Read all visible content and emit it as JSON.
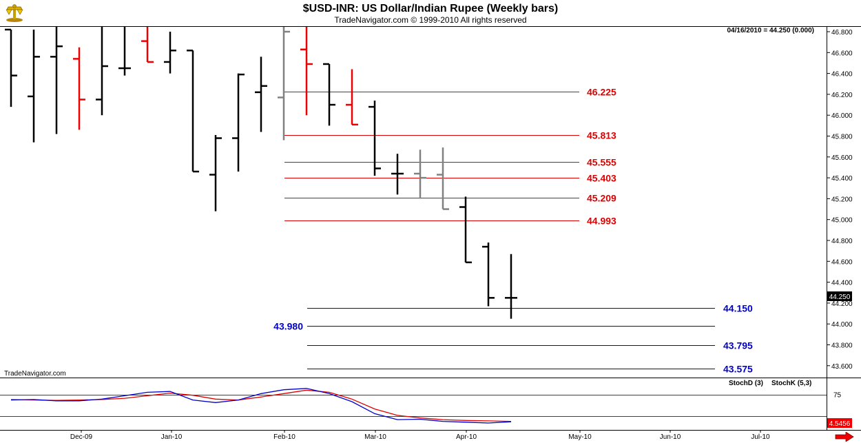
{
  "title": "$USD-INR:  US Dollar/Indian Rupee  (Weekly bars)",
  "subtitle": "TradeNavigator.com © 1999-2010 All rights reserved",
  "watermark": "TradeNavigator.com",
  "last_quote": "04/16/2010 = 44.250 (0.000)",
  "price_marker": "44.250",
  "indicator_marker": "4.5456",
  "indicator_legend": [
    {
      "label": "StochD (3)",
      "color": "#dd0000"
    },
    {
      "label": "StochK (5,3)",
      "color": "#0000cc"
    }
  ],
  "colors": {
    "up_bar": "#000000",
    "down_bar": "#ee0000",
    "neutral_bar": "#808080",
    "resistance": "#dd0000",
    "support": "#0000cc"
  },
  "chart_data": {
    "type": "ohlc",
    "y_range": [
      43.5,
      46.85
    ],
    "y_ticks": [
      "46.800",
      "46.600",
      "46.400",
      "46.200",
      "46.000",
      "45.800",
      "45.600",
      "45.400",
      "45.200",
      "45.000",
      "44.800",
      "44.600",
      "44.400",
      "44.200",
      "44.000",
      "43.800",
      "43.600"
    ],
    "x_labels": [
      "Dec-09",
      "Jan-10",
      "Feb-10",
      "Mar-10",
      "Apr-10",
      "May-10",
      "Jun-10",
      "Jul-10"
    ],
    "bars": [
      {
        "week": 0,
        "open": 46.82,
        "high": 46.82,
        "low": 46.08,
        "close": 46.38,
        "color": "black"
      },
      {
        "week": 1,
        "open": 46.18,
        "high": 46.82,
        "low": 45.74,
        "close": 46.56,
        "color": "black"
      },
      {
        "week": 2,
        "open": 46.56,
        "high": 46.9,
        "low": 45.82,
        "close": 46.66,
        "color": "black"
      },
      {
        "week": 3,
        "open": 46.54,
        "high": 46.65,
        "low": 45.86,
        "close": 46.15,
        "color": "red"
      },
      {
        "week": 4,
        "open": 46.15,
        "high": 46.9,
        "low": 46.0,
        "close": 46.47,
        "color": "black"
      },
      {
        "week": 5,
        "open": 46.45,
        "high": 46.9,
        "low": 46.38,
        "close": 46.45,
        "color": "black"
      },
      {
        "week": 6,
        "open": 46.71,
        "high": 46.9,
        "low": 46.51,
        "close": 46.51,
        "color": "red"
      },
      {
        "week": 7,
        "open": 46.51,
        "high": 46.8,
        "low": 46.4,
        "close": 46.62,
        "color": "black"
      },
      {
        "week": 8,
        "open": 46.62,
        "high": 46.62,
        "low": 45.46,
        "close": 45.46,
        "color": "black"
      },
      {
        "week": 9,
        "open": 45.43,
        "high": 45.81,
        "low": 45.08,
        "close": 45.78,
        "color": "black"
      },
      {
        "week": 10,
        "open": 45.78,
        "high": 46.4,
        "low": 45.46,
        "close": 46.39,
        "color": "black"
      },
      {
        "week": 11,
        "open": 46.22,
        "high": 46.56,
        "low": 45.84,
        "close": 46.28,
        "color": "black"
      },
      {
        "week": 12,
        "open": 46.17,
        "high": 46.9,
        "low": 45.76,
        "close": 46.8,
        "color": "gray"
      },
      {
        "week": 13,
        "open": 46.63,
        "high": 46.9,
        "low": 46.0,
        "close": 46.49,
        "color": "red"
      },
      {
        "week": 14,
        "open": 46.49,
        "high": 46.49,
        "low": 45.9,
        "close": 46.1,
        "color": "black"
      },
      {
        "week": 15,
        "open": 46.1,
        "high": 46.44,
        "low": 45.91,
        "close": 45.91,
        "color": "red"
      },
      {
        "week": 16,
        "open": 46.08,
        "high": 46.14,
        "low": 45.42,
        "close": 45.49,
        "color": "black"
      },
      {
        "week": 17,
        "open": 45.44,
        "high": 45.63,
        "low": 45.24,
        "close": 45.44,
        "color": "black"
      },
      {
        "week": 18,
        "open": 45.44,
        "high": 45.67,
        "low": 45.2,
        "close": 45.4,
        "color": "gray"
      },
      {
        "week": 19,
        "open": 45.43,
        "high": 45.69,
        "low": 45.1,
        "close": 45.1,
        "color": "gray"
      },
      {
        "week": 20,
        "open": 45.12,
        "high": 45.22,
        "low": 44.59,
        "close": 44.59,
        "color": "black"
      },
      {
        "week": 21,
        "open": 44.74,
        "high": 44.78,
        "low": 44.17,
        "close": 44.25,
        "color": "black"
      },
      {
        "week": 22,
        "open": 44.25,
        "high": 44.67,
        "low": 44.05,
        "close": 44.25,
        "color": "black"
      }
    ],
    "levels": [
      {
        "value": "46.225",
        "kind": "resistance"
      },
      {
        "value": "45.813",
        "kind": "resistance"
      },
      {
        "value": "45.555",
        "kind": "resistance"
      },
      {
        "value": "45.403",
        "kind": "resistance"
      },
      {
        "value": "45.209",
        "kind": "resistance"
      },
      {
        "value": "44.993",
        "kind": "resistance"
      },
      {
        "value": "44.150",
        "kind": "support"
      },
      {
        "value": "43.980",
        "kind": "support"
      },
      {
        "value": "43.795",
        "kind": "support"
      },
      {
        "value": "43.575",
        "kind": "support"
      }
    ],
    "indicator": {
      "y_range": [
        0,
        100
      ],
      "y_ticks": [
        "75"
      ],
      "series": [
        {
          "name": "StochD (3)",
          "values": [
            63,
            62,
            61,
            62,
            63,
            66,
            72,
            78,
            73,
            64,
            62,
            69,
            77,
            85,
            80,
            64,
            41,
            26,
            20,
            16,
            14,
            13,
            12
          ]
        },
        {
          "name": "StochK (5,3)",
          "values": [
            62,
            63,
            60,
            60,
            64,
            72,
            80,
            82,
            62,
            56,
            62,
            77,
            86,
            89,
            77,
            58,
            30,
            16,
            17,
            12,
            10,
            8,
            11
          ]
        }
      ]
    }
  }
}
